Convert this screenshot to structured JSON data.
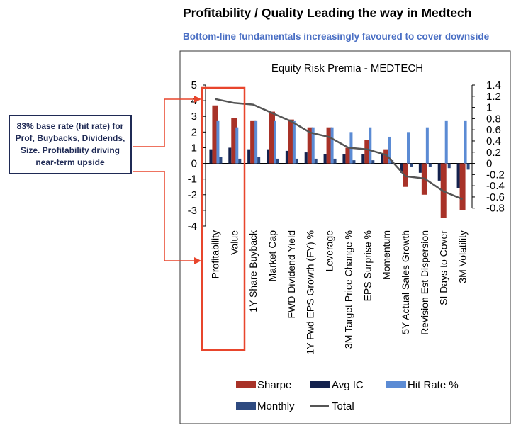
{
  "header": {
    "title": "Profitability / Quality Leading the way in Medtech",
    "subtitle": "Bottom-line fundamentals increasingly favoured to cover downside"
  },
  "callout": {
    "text": "83% base rate (hit rate) for Prof, Buybacks, Dividends, Size. Profitability driving near-term upside"
  },
  "colors": {
    "sharpe": "#a83228",
    "avg_ic": "#14224e",
    "hit_rate": "#5b8bd4",
    "monthly": "#2e4a80",
    "total": "#555555",
    "highlight": "#e8452c"
  },
  "chart_data": {
    "type": "bar",
    "title": "Equity Risk Premia - MEDTECH",
    "categories": [
      "Profitability",
      "Value",
      "1Y Share Buyback",
      "Market Cap",
      "FWD Dividend Yield",
      "1Y Fwd EPS Growth (FY) %",
      "Leverage",
      "3M Target Price Change %",
      "EPS Surprise %",
      "Momentum",
      "5Y Actual Sales Growth",
      "Revision Est Dispersion",
      "SI Days to Cover",
      "3M Volatility"
    ],
    "left_axis": {
      "min": -4,
      "max": 5,
      "ticks": [
        "5",
        "4",
        "3",
        "2",
        "1",
        "0",
        "-1",
        "-2",
        "-3",
        "-4"
      ]
    },
    "right_axis": {
      "min": -0.8,
      "max": 1.4,
      "ticks": [
        "1.4",
        "1.2",
        "1",
        "0.8",
        "0.6",
        "0.4",
        "0.2",
        "0",
        "-0.2",
        "-0.4",
        "-0.6",
        "-0.8"
      ]
    },
    "series": [
      {
        "name": "Sharpe",
        "axis": "left",
        "values": [
          3.7,
          2.9,
          2.7,
          3.3,
          2.8,
          2.3,
          2.3,
          1.0,
          1.5,
          0.9,
          -1.5,
          -2.0,
          -3.5,
          -3.0
        ]
      },
      {
        "name": "Avg IC",
        "axis": "left",
        "values": [
          0.9,
          1.0,
          0.9,
          0.9,
          0.8,
          0.7,
          0.6,
          0.6,
          0.6,
          0.6,
          -0.6,
          -0.6,
          -1.1,
          -1.6
        ]
      },
      {
        "name": "Hit Rate %",
        "axis": "left",
        "values": [
          2.7,
          2.3,
          2.7,
          2.7,
          2.7,
          2.3,
          2.3,
          2.0,
          2.3,
          1.7,
          2.0,
          2.3,
          2.7,
          2.7
        ]
      },
      {
        "name": "Monthly",
        "axis": "left",
        "values": [
          0.4,
          0.3,
          0.4,
          0.3,
          0.3,
          0.3,
          0.3,
          0.2,
          0.2,
          0.2,
          -0.2,
          -0.2,
          -0.3,
          -0.4
        ]
      },
      {
        "name": "Total",
        "axis": "right",
        "type": "line",
        "values": [
          1.15,
          1.08,
          1.05,
          0.9,
          0.75,
          0.55,
          0.47,
          0.28,
          0.25,
          0.15,
          -0.23,
          -0.27,
          -0.5,
          -0.64
        ]
      }
    ],
    "legend": [
      "Sharpe",
      "Avg IC",
      "Hit Rate %",
      "Monthly",
      "Total"
    ],
    "legend_position": "bottom"
  }
}
